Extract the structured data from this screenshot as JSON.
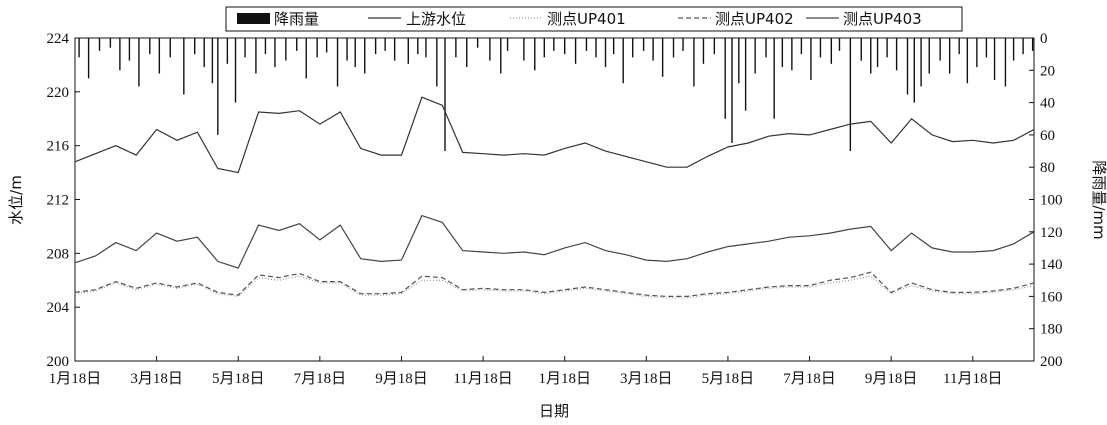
{
  "chart_data": {
    "type": "line",
    "xlabel": "日期",
    "ylabel_left": "水位/m",
    "ylabel_right": "降雨量/mm",
    "ylim_left": [
      200,
      224
    ],
    "ylim_right": [
      200,
      0
    ],
    "x_tick_labels": [
      "1月18日",
      "3月18日",
      "5月18日",
      "7月18日",
      "9月18日",
      "11月18日",
      "1月18日",
      "3月18日",
      "5月18日",
      "7月18日",
      "9月18日",
      "11月18日"
    ],
    "y_ticks_left": [
      200,
      204,
      208,
      212,
      216,
      220,
      224
    ],
    "y_ticks_right": [
      0,
      20,
      40,
      60,
      80,
      100,
      120,
      140,
      160,
      180,
      200
    ],
    "legend_position": "top",
    "x": [
      0,
      15,
      30,
      45,
      60,
      75,
      90,
      105,
      120,
      135,
      150,
      165,
      180,
      195,
      210,
      225,
      240,
      255,
      270,
      285,
      300,
      315,
      330,
      345,
      360,
      375,
      390,
      405,
      420,
      435,
      450,
      465,
      480,
      495,
      510,
      525,
      540,
      555,
      570,
      585,
      600,
      615,
      630,
      645,
      660,
      675,
      690,
      705
    ],
    "series": [
      {
        "name": "降雨量",
        "style": "bar",
        "color": "#111111",
        "points": [
          [
            3,
            12
          ],
          [
            10,
            25
          ],
          [
            18,
            8
          ],
          [
            26,
            6
          ],
          [
            33,
            20
          ],
          [
            40,
            14
          ],
          [
            47,
            30
          ],
          [
            55,
            10
          ],
          [
            62,
            22
          ],
          [
            70,
            12
          ],
          [
            80,
            35
          ],
          [
            88,
            10
          ],
          [
            95,
            18
          ],
          [
            101,
            28
          ],
          [
            105,
            60
          ],
          [
            112,
            16
          ],
          [
            118,
            40
          ],
          [
            125,
            12
          ],
          [
            133,
            22
          ],
          [
            140,
            10
          ],
          [
            147,
            18
          ],
          [
            155,
            14
          ],
          [
            163,
            8
          ],
          [
            170,
            25
          ],
          [
            178,
            12
          ],
          [
            185,
            9
          ],
          [
            193,
            30
          ],
          [
            200,
            14
          ],
          [
            206,
            18
          ],
          [
            213,
            22
          ],
          [
            221,
            10
          ],
          [
            228,
            8
          ],
          [
            235,
            14
          ],
          [
            245,
            16
          ],
          [
            252,
            10
          ],
          [
            258,
            12
          ],
          [
            266,
            30
          ],
          [
            272,
            70
          ],
          [
            280,
            12
          ],
          [
            288,
            18
          ],
          [
            296,
            6
          ],
          [
            305,
            14
          ],
          [
            313,
            22
          ],
          [
            318,
            8
          ],
          [
            330,
            14
          ],
          [
            338,
            20
          ],
          [
            345,
            12
          ],
          [
            352,
            8
          ],
          [
            360,
            10
          ],
          [
            368,
            16
          ],
          [
            376,
            8
          ],
          [
            383,
            12
          ],
          [
            390,
            18
          ],
          [
            396,
            10
          ],
          [
            403,
            28
          ],
          [
            410,
            12
          ],
          [
            418,
            8
          ],
          [
            425,
            14
          ],
          [
            432,
            24
          ],
          [
            440,
            12
          ],
          [
            447,
            8
          ],
          [
            455,
            30
          ],
          [
            462,
            16
          ],
          [
            470,
            10
          ],
          [
            478,
            50
          ],
          [
            483,
            65
          ],
          [
            488,
            28
          ],
          [
            493,
            45
          ],
          [
            500,
            22
          ],
          [
            508,
            12
          ],
          [
            514,
            50
          ],
          [
            520,
            18
          ],
          [
            527,
            20
          ],
          [
            534,
            10
          ],
          [
            541,
            26
          ],
          [
            548,
            12
          ],
          [
            556,
            16
          ],
          [
            562,
            8
          ],
          [
            570,
            70
          ],
          [
            578,
            14
          ],
          [
            585,
            22
          ],
          [
            590,
            18
          ],
          [
            597,
            12
          ],
          [
            604,
            20
          ],
          [
            612,
            35
          ],
          [
            617,
            40
          ],
          [
            622,
            30
          ],
          [
            628,
            22
          ],
          [
            636,
            14
          ],
          [
            643,
            22
          ],
          [
            650,
            10
          ],
          [
            656,
            28
          ],
          [
            663,
            18
          ],
          [
            670,
            12
          ],
          [
            676,
            26
          ],
          [
            684,
            30
          ],
          [
            690,
            14
          ],
          [
            697,
            10
          ],
          [
            704,
            8
          ]
        ]
      },
      {
        "name": "上游水位",
        "color": "#333333",
        "values": [
          214.8,
          215.4,
          216.0,
          215.3,
          217.2,
          216.4,
          217.0,
          214.3,
          214.0,
          218.5,
          218.4,
          218.6,
          217.6,
          218.5,
          215.8,
          215.3,
          215.3,
          219.6,
          219.0,
          215.5,
          215.4,
          215.3,
          215.4,
          215.3,
          215.8,
          216.2,
          215.6,
          215.2,
          214.8,
          214.4,
          214.4,
          215.2,
          215.9,
          216.2,
          216.7,
          216.9,
          216.8,
          217.2,
          217.6,
          217.8,
          216.2,
          218.0,
          216.8,
          216.3,
          216.4,
          216.2,
          216.4,
          217.2
        ]
      },
      {
        "name": "测点UP401",
        "color": "#999999",
        "dash": "1,2",
        "values": [
          205.0,
          205.2,
          205.8,
          205.3,
          205.7,
          205.4,
          205.7,
          205.0,
          204.8,
          206.2,
          206.0,
          206.3,
          205.8,
          205.8,
          204.9,
          204.9,
          205.0,
          206.0,
          206.0,
          205.2,
          205.3,
          205.2,
          205.2,
          205.0,
          205.2,
          205.4,
          205.2,
          205.0,
          204.8,
          204.7,
          204.7,
          204.9,
          205.0,
          205.2,
          205.4,
          205.5,
          205.5,
          205.8,
          206.0,
          206.3,
          205.0,
          205.6,
          205.2,
          205.0,
          205.0,
          205.1,
          205.3,
          205.6
        ]
      },
      {
        "name": "测点UP402",
        "color": "#555555",
        "dash": "5,3",
        "values": [
          205.1,
          205.3,
          205.9,
          205.4,
          205.8,
          205.5,
          205.8,
          205.1,
          204.9,
          206.4,
          206.2,
          206.5,
          205.9,
          205.9,
          205.0,
          205.0,
          205.1,
          206.3,
          206.2,
          205.3,
          205.4,
          205.3,
          205.3,
          205.1,
          205.3,
          205.5,
          205.3,
          205.1,
          204.9,
          204.8,
          204.8,
          205.0,
          205.1,
          205.3,
          205.5,
          205.6,
          205.6,
          206.0,
          206.2,
          206.6,
          205.1,
          205.8,
          205.3,
          205.1,
          205.1,
          205.2,
          205.4,
          205.8
        ]
      },
      {
        "name": "测点UP403",
        "color": "#444444",
        "values": [
          207.3,
          207.8,
          208.8,
          208.2,
          209.5,
          208.9,
          209.2,
          207.4,
          206.9,
          210.1,
          209.7,
          210.2,
          209.0,
          210.1,
          207.6,
          207.4,
          207.5,
          210.8,
          210.3,
          208.2,
          208.1,
          208.0,
          208.1,
          207.9,
          208.4,
          208.8,
          208.2,
          207.9,
          207.5,
          207.4,
          207.6,
          208.1,
          208.5,
          208.7,
          208.9,
          209.2,
          209.3,
          209.5,
          209.8,
          210.0,
          208.2,
          209.5,
          208.4,
          208.1,
          208.1,
          208.2,
          208.7,
          209.6
        ]
      }
    ]
  }
}
